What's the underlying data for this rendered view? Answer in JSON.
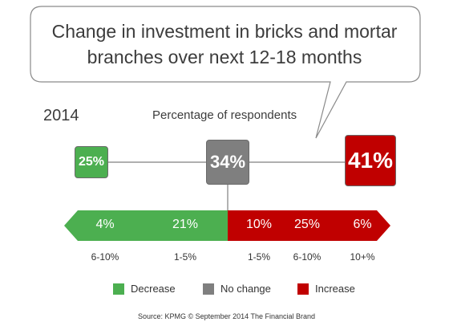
{
  "header": {
    "title_line1": "Change in investment in bricks and mortar",
    "title_line2": "branches over next 12-18 months"
  },
  "year": "2014",
  "subtitle": "Percentage of respondents",
  "colors": {
    "decrease": "#4caf50",
    "no_change": "#7f7f7f",
    "increase": "#c00000"
  },
  "chart_data": [
    {
      "type": "bar",
      "title": "Change in investment in bricks and mortar branches over next 12-18 months",
      "subtitle": "Percentage of respondents",
      "categories": [
        "Decrease",
        "No change",
        "Increase"
      ],
      "values": [
        25,
        34,
        41
      ],
      "labels": [
        "25%",
        "34%",
        "41%"
      ]
    },
    {
      "type": "bar",
      "stacked": true,
      "categories": [
        "6-10%",
        "1-5%",
        "1-5%",
        "6-10%",
        "10+%"
      ],
      "values": [
        4,
        21,
        10,
        25,
        6
      ],
      "labels": [
        "4%",
        "21%",
        "10%",
        "25%",
        "6%"
      ],
      "groups": [
        "Decrease",
        "Decrease",
        "Increase",
        "Increase",
        "Increase"
      ]
    }
  ],
  "legend": [
    {
      "label": "Decrease",
      "color": "#4caf50"
    },
    {
      "label": "No change",
      "color": "#7f7f7f"
    },
    {
      "label": "Increase",
      "color": "#c00000"
    }
  ],
  "source": "Source: KPMG © September 2014 The Financial Brand"
}
